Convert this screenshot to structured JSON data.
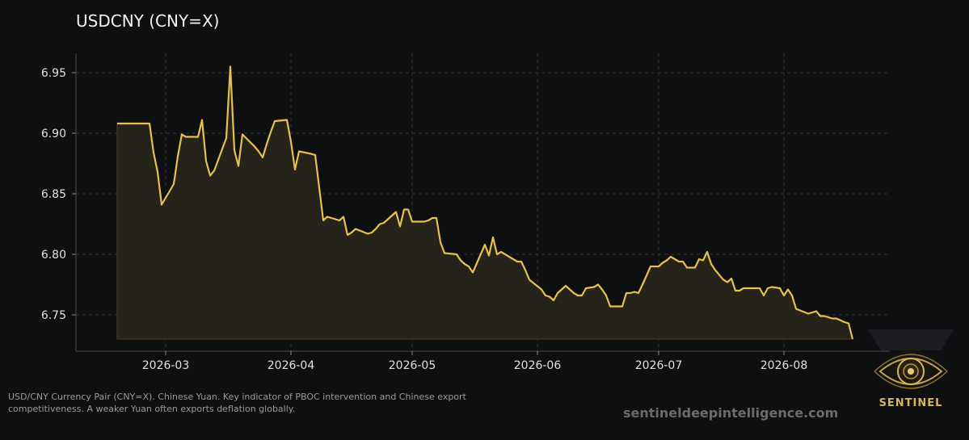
{
  "header": {
    "title": "USDCNY (CNY=X)"
  },
  "caption": "USD/CNY Currency Pair (CNY=X). Chinese Yuan. Key indicator of PBOC intervention and Chinese export competitiveness. A weaker Yuan often exports deflation globally.",
  "watermark": "sentineldeepintelligence.com",
  "logo": {
    "text": "SENTINEL",
    "icon": "eye-icon"
  },
  "colors": {
    "background": "#0e0f11",
    "line": "#e8c04e",
    "fill": "#25231a",
    "grid": "#2e3033",
    "tick_text": "#e0e0e0"
  },
  "chart_data": {
    "type": "area",
    "title": "USDCNY (CNY=X)",
    "xlabel": "",
    "ylabel": "",
    "ylim": [
      6.73,
      6.955
    ],
    "grid": true,
    "x_ticks": [
      "2026-03",
      "2026-04",
      "2026-05",
      "2026-06",
      "2026-07",
      "2026-08"
    ],
    "y_ticks": [
      "6.75",
      "6.80",
      "6.85",
      "6.90",
      "6.95"
    ],
    "series": [
      {
        "values": [
          [
            "2026-02-17",
            6.908
          ],
          [
            "2026-02-20",
            6.908
          ],
          [
            "2026-02-24",
            6.908
          ],
          [
            "2026-02-25",
            6.908
          ],
          [
            "2026-02-26",
            6.884
          ],
          [
            "2026-02-27",
            6.868
          ],
          [
            "2026-02-28",
            6.841
          ],
          [
            "2026-03-03",
            6.858
          ],
          [
            "2026-03-04",
            6.881
          ],
          [
            "2026-03-05",
            6.899
          ],
          [
            "2026-03-06",
            6.897
          ],
          [
            "2026-03-09",
            6.897
          ],
          [
            "2026-03-10",
            6.911
          ],
          [
            "2026-03-11",
            6.877
          ],
          [
            "2026-03-12",
            6.865
          ],
          [
            "2026-03-13",
            6.869
          ],
          [
            "2026-03-16",
            6.896
          ],
          [
            "2026-03-17",
            6.955
          ],
          [
            "2026-03-18",
            6.886
          ],
          [
            "2026-03-19",
            6.873
          ],
          [
            "2026-03-20",
            6.899
          ],
          [
            "2026-03-23",
            6.889
          ],
          [
            "2026-03-24",
            6.885
          ],
          [
            "2026-03-25",
            6.88
          ],
          [
            "2026-03-26",
            6.891
          ],
          [
            "2026-03-27",
            6.901
          ],
          [
            "2026-03-28",
            6.91
          ],
          [
            "2026-03-31",
            6.911
          ],
          [
            "2026-04-01",
            6.893
          ],
          [
            "2026-04-02",
            6.87
          ],
          [
            "2026-04-03",
            6.885
          ],
          [
            "2026-04-06",
            6.883
          ],
          [
            "2026-04-07",
            6.882
          ],
          [
            "2026-04-08",
            6.855
          ],
          [
            "2026-04-09",
            6.828
          ],
          [
            "2026-04-10",
            6.831
          ],
          [
            "2026-04-13",
            6.828
          ],
          [
            "2026-04-14",
            6.831
          ],
          [
            "2026-04-15",
            6.816
          ],
          [
            "2026-04-16",
            6.818
          ],
          [
            "2026-04-17",
            6.821
          ],
          [
            "2026-04-20",
            6.817
          ],
          [
            "2026-04-21",
            6.818
          ],
          [
            "2026-04-22",
            6.821
          ],
          [
            "2026-04-23",
            6.825
          ],
          [
            "2026-04-24",
            6.826
          ],
          [
            "2026-04-27",
            6.835
          ],
          [
            "2026-04-28",
            6.823
          ],
          [
            "2026-04-29",
            6.837
          ],
          [
            "2026-04-30",
            6.837
          ],
          [
            "2026-05-01",
            6.827
          ],
          [
            "2026-05-04",
            6.827
          ],
          [
            "2026-05-05",
            6.828
          ],
          [
            "2026-05-06",
            6.83
          ],
          [
            "2026-05-07",
            6.83
          ],
          [
            "2026-05-08",
            6.81
          ],
          [
            "2026-05-09",
            6.801
          ],
          [
            "2026-05-12",
            6.8
          ],
          [
            "2026-05-13",
            6.795
          ],
          [
            "2026-05-14",
            6.792
          ],
          [
            "2026-05-15",
            6.79
          ],
          [
            "2026-05-16",
            6.785
          ],
          [
            "2026-05-19",
            6.808
          ],
          [
            "2026-05-20",
            6.799
          ],
          [
            "2026-05-21",
            6.814
          ],
          [
            "2026-05-22",
            6.8
          ],
          [
            "2026-05-23",
            6.802
          ],
          [
            "2026-05-26",
            6.796
          ],
          [
            "2026-05-27",
            6.794
          ],
          [
            "2026-05-28",
            6.794
          ],
          [
            "2026-05-29",
            6.787
          ],
          [
            "2026-05-30",
            6.779
          ],
          [
            "2026-06-02",
            6.771
          ],
          [
            "2026-06-03",
            6.766
          ],
          [
            "2026-06-04",
            6.765
          ],
          [
            "2026-06-05",
            6.762
          ],
          [
            "2026-06-06",
            6.768
          ],
          [
            "2026-06-08",
            6.774
          ],
          [
            "2026-06-09",
            6.771
          ],
          [
            "2026-06-10",
            6.768
          ],
          [
            "2026-06-11",
            6.766
          ],
          [
            "2026-06-12",
            6.766
          ],
          [
            "2026-06-13",
            6.772
          ],
          [
            "2026-06-15",
            6.773
          ],
          [
            "2026-06-16",
            6.775
          ],
          [
            "2026-06-17",
            6.771
          ],
          [
            "2026-06-18",
            6.766
          ],
          [
            "2026-06-19",
            6.757
          ],
          [
            "2026-06-22",
            6.757
          ],
          [
            "2026-06-23",
            6.768
          ],
          [
            "2026-06-24",
            6.768
          ],
          [
            "2026-06-25",
            6.769
          ],
          [
            "2026-06-26",
            6.768
          ],
          [
            "2026-06-27",
            6.775
          ],
          [
            "2026-06-29",
            6.79
          ],
          [
            "2026-06-30",
            6.79
          ],
          [
            "2026-07-01",
            6.79
          ],
          [
            "2026-07-02",
            6.793
          ],
          [
            "2026-07-03",
            6.795
          ],
          [
            "2026-07-04",
            6.798
          ],
          [
            "2026-07-06",
            6.794
          ],
          [
            "2026-07-07",
            6.794
          ],
          [
            "2026-07-08",
            6.789
          ],
          [
            "2026-07-09",
            6.789
          ],
          [
            "2026-07-10",
            6.789
          ],
          [
            "2026-07-11",
            6.796
          ],
          [
            "2026-07-12",
            6.795
          ],
          [
            "2026-07-13",
            6.802
          ],
          [
            "2026-07-14",
            6.792
          ],
          [
            "2026-07-15",
            6.787
          ],
          [
            "2026-07-17",
            6.779
          ],
          [
            "2026-07-18",
            6.777
          ],
          [
            "2026-07-19",
            6.78
          ],
          [
            "2026-07-20",
            6.77
          ],
          [
            "2026-07-21",
            6.77
          ],
          [
            "2026-07-22",
            6.772
          ],
          [
            "2026-07-23",
            6.772
          ],
          [
            "2026-07-24",
            6.772
          ],
          [
            "2026-07-26",
            6.772
          ],
          [
            "2026-07-27",
            6.766
          ],
          [
            "2026-07-28",
            6.772
          ],
          [
            "2026-07-29",
            6.773
          ],
          [
            "2026-07-31",
            6.772
          ],
          [
            "2026-08-01",
            6.766
          ],
          [
            "2026-08-02",
            6.771
          ],
          [
            "2026-08-03",
            6.766
          ],
          [
            "2026-08-04",
            6.755
          ],
          [
            "2026-08-07",
            6.751
          ],
          [
            "2026-08-09",
            6.753
          ],
          [
            "2026-08-10",
            6.749
          ],
          [
            "2026-08-11",
            6.749
          ],
          [
            "2026-08-12",
            6.748
          ],
          [
            "2026-08-13",
            6.747
          ],
          [
            "2026-08-14",
            6.747
          ],
          [
            "2026-08-16",
            6.744
          ],
          [
            "2026-08-17",
            6.743
          ],
          [
            "2026-08-18",
            6.73
          ]
        ]
      }
    ]
  }
}
